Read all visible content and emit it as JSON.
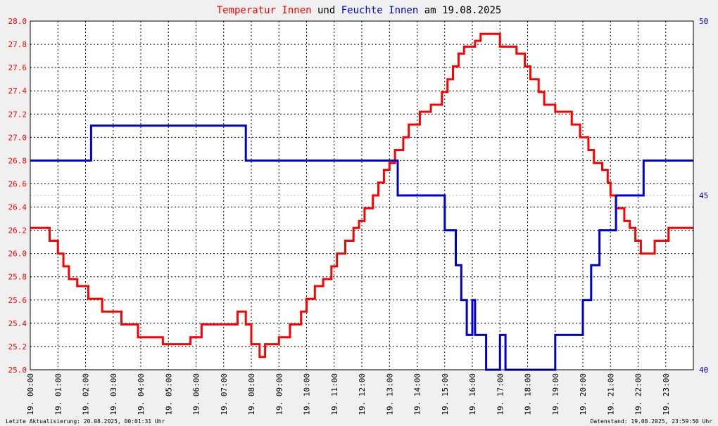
{
  "title": {
    "part1": "Temperatur Innen",
    "part2": "und",
    "part3": "Feuchte Innen",
    "part4": "am 19.08.2025",
    "color1": "#ff0000",
    "color2": "#000000",
    "color3": "#0000cc"
  },
  "footer": {
    "left": "Letzte Aktualisierung: 20.08.2025, 00:01:31 Uhr",
    "right": "Datenstand: 19.08.2025, 23:59:50 Uhr"
  },
  "chart_data": {
    "type": "line",
    "x_tick_labels": [
      "19. 00:00",
      "19. 01:00",
      "19. 02:00",
      "19. 03:00",
      "19. 04:00",
      "19. 05:00",
      "19. 06:00",
      "19. 07:00",
      "19. 08:00",
      "19. 09:00",
      "19. 10:00",
      "19. 11:00",
      "19. 12:00",
      "19. 13:00",
      "19. 14:00",
      "19. 15:00",
      "19. 16:00",
      "19. 17:00",
      "19. 18:00",
      "19. 19:00",
      "19. 20:00",
      "19. 21:00",
      "19. 22:00",
      "19. 23:00"
    ],
    "xlim_hours": [
      0,
      24
    ],
    "left_axis": {
      "ylim": [
        25.0,
        28.0
      ],
      "tick_labels": [
        "25.0",
        "25.2",
        "25.4",
        "25.6",
        "25.8",
        "26.0",
        "26.2",
        "26.4",
        "26.6",
        "26.8",
        "27.0",
        "27.2",
        "27.4",
        "27.6",
        "27.8",
        "28.0"
      ],
      "color": "#ff0000"
    },
    "right_axis": {
      "ylim": [
        40,
        50
      ],
      "tick_labels": [
        "40",
        "45",
        "50"
      ],
      "color": "#0000cc"
    },
    "grid": true,
    "series": [
      {
        "name": "Temperatur Innen",
        "axis": "left",
        "color": "#ff0000",
        "points": [
          [
            0,
            26.22
          ],
          [
            0.7,
            26.22
          ],
          [
            0.7,
            26.11
          ],
          [
            1.0,
            26.11
          ],
          [
            1.0,
            26.0
          ],
          [
            1.2,
            26.0
          ],
          [
            1.2,
            25.89
          ],
          [
            1.4,
            25.89
          ],
          [
            1.4,
            25.78
          ],
          [
            1.7,
            25.78
          ],
          [
            1.7,
            25.72
          ],
          [
            2.1,
            25.72
          ],
          [
            2.1,
            25.61
          ],
          [
            2.6,
            25.61
          ],
          [
            2.6,
            25.5
          ],
          [
            3.3,
            25.5
          ],
          [
            3.3,
            25.39
          ],
          [
            3.9,
            25.39
          ],
          [
            3.9,
            25.28
          ],
          [
            4.8,
            25.28
          ],
          [
            4.8,
            25.22
          ],
          [
            5.8,
            25.22
          ],
          [
            5.8,
            25.28
          ],
          [
            6.2,
            25.28
          ],
          [
            6.2,
            25.39
          ],
          [
            7.5,
            25.39
          ],
          [
            7.5,
            25.5
          ],
          [
            7.8,
            25.5
          ],
          [
            7.8,
            25.39
          ],
          [
            8.0,
            25.39
          ],
          [
            8.0,
            25.22
          ],
          [
            8.3,
            25.22
          ],
          [
            8.3,
            25.11
          ],
          [
            8.5,
            25.11
          ],
          [
            8.5,
            25.22
          ],
          [
            9.0,
            25.22
          ],
          [
            9.0,
            25.28
          ],
          [
            9.4,
            25.28
          ],
          [
            9.4,
            25.39
          ],
          [
            9.8,
            25.39
          ],
          [
            9.8,
            25.5
          ],
          [
            10.0,
            25.5
          ],
          [
            10.0,
            25.61
          ],
          [
            10.3,
            25.61
          ],
          [
            10.3,
            25.72
          ],
          [
            10.6,
            25.72
          ],
          [
            10.6,
            25.78
          ],
          [
            10.9,
            25.78
          ],
          [
            10.9,
            25.89
          ],
          [
            11.1,
            25.89
          ],
          [
            11.1,
            26.0
          ],
          [
            11.4,
            26.0
          ],
          [
            11.4,
            26.11
          ],
          [
            11.7,
            26.11
          ],
          [
            11.7,
            26.22
          ],
          [
            11.9,
            26.22
          ],
          [
            11.9,
            26.28
          ],
          [
            12.1,
            26.28
          ],
          [
            12.1,
            26.39
          ],
          [
            12.4,
            26.39
          ],
          [
            12.4,
            26.5
          ],
          [
            12.6,
            26.5
          ],
          [
            12.6,
            26.61
          ],
          [
            12.8,
            26.61
          ],
          [
            12.8,
            26.72
          ],
          [
            13.0,
            26.72
          ],
          [
            13.0,
            26.78
          ],
          [
            13.2,
            26.78
          ],
          [
            13.2,
            26.89
          ],
          [
            13.5,
            26.89
          ],
          [
            13.5,
            27.0
          ],
          [
            13.7,
            27.0
          ],
          [
            13.7,
            27.11
          ],
          [
            14.1,
            27.11
          ],
          [
            14.1,
            27.22
          ],
          [
            14.5,
            27.22
          ],
          [
            14.5,
            27.28
          ],
          [
            14.9,
            27.28
          ],
          [
            14.9,
            27.39
          ],
          [
            15.1,
            27.39
          ],
          [
            15.1,
            27.5
          ],
          [
            15.3,
            27.5
          ],
          [
            15.3,
            27.61
          ],
          [
            15.5,
            27.61
          ],
          [
            15.5,
            27.72
          ],
          [
            15.7,
            27.72
          ],
          [
            15.7,
            27.78
          ],
          [
            16.1,
            27.78
          ],
          [
            16.1,
            27.83
          ],
          [
            16.3,
            27.83
          ],
          [
            16.3,
            27.89
          ],
          [
            17.0,
            27.89
          ],
          [
            17.0,
            27.78
          ],
          [
            17.6,
            27.78
          ],
          [
            17.6,
            27.72
          ],
          [
            17.9,
            27.72
          ],
          [
            17.9,
            27.61
          ],
          [
            18.1,
            27.61
          ],
          [
            18.1,
            27.5
          ],
          [
            18.4,
            27.5
          ],
          [
            18.4,
            27.39
          ],
          [
            18.6,
            27.39
          ],
          [
            18.6,
            27.28
          ],
          [
            19.0,
            27.28
          ],
          [
            19.0,
            27.22
          ],
          [
            19.6,
            27.22
          ],
          [
            19.6,
            27.11
          ],
          [
            19.9,
            27.11
          ],
          [
            19.9,
            27.0
          ],
          [
            20.2,
            27.0
          ],
          [
            20.2,
            26.89
          ],
          [
            20.4,
            26.89
          ],
          [
            20.4,
            26.78
          ],
          [
            20.7,
            26.78
          ],
          [
            20.7,
            26.72
          ],
          [
            20.9,
            26.72
          ],
          [
            20.9,
            26.61
          ],
          [
            21.0,
            26.61
          ],
          [
            21.0,
            26.5
          ],
          [
            21.2,
            26.5
          ],
          [
            21.2,
            26.39
          ],
          [
            21.5,
            26.39
          ],
          [
            21.5,
            26.28
          ],
          [
            21.7,
            26.28
          ],
          [
            21.7,
            26.22
          ],
          [
            21.9,
            26.22
          ],
          [
            21.9,
            26.11
          ],
          [
            22.1,
            26.11
          ],
          [
            22.1,
            26.0
          ],
          [
            22.6,
            26.0
          ],
          [
            22.6,
            26.11
          ],
          [
            23.1,
            26.11
          ],
          [
            23.1,
            26.22
          ],
          [
            24.0,
            26.22
          ]
        ]
      },
      {
        "name": "Feuchte Innen",
        "axis": "right",
        "color": "#0000cc",
        "points": [
          [
            0,
            46.0
          ],
          [
            2.2,
            46.0
          ],
          [
            2.2,
            47.0
          ],
          [
            7.8,
            47.0
          ],
          [
            7.8,
            46.0
          ],
          [
            13.3,
            46.0
          ],
          [
            13.3,
            45.0
          ],
          [
            15.0,
            45.0
          ],
          [
            15.0,
            44.0
          ],
          [
            15.4,
            44.0
          ],
          [
            15.4,
            43.0
          ],
          [
            15.6,
            43.0
          ],
          [
            15.6,
            42.0
          ],
          [
            15.8,
            42.0
          ],
          [
            15.8,
            41.0
          ],
          [
            16.0,
            41.0
          ],
          [
            16.0,
            42.0
          ],
          [
            16.1,
            42.0
          ],
          [
            16.1,
            41.0
          ],
          [
            16.5,
            41.0
          ],
          [
            16.5,
            40.0
          ],
          [
            17.0,
            40.0
          ],
          [
            17.0,
            41.0
          ],
          [
            17.2,
            41.0
          ],
          [
            17.2,
            40.0
          ],
          [
            19.0,
            40.0
          ],
          [
            19.0,
            41.0
          ],
          [
            20.0,
            41.0
          ],
          [
            20.0,
            42.0
          ],
          [
            20.3,
            42.0
          ],
          [
            20.3,
            43.0
          ],
          [
            20.6,
            43.0
          ],
          [
            20.6,
            44.0
          ],
          [
            21.2,
            44.0
          ],
          [
            21.2,
            45.0
          ],
          [
            22.2,
            45.0
          ],
          [
            22.2,
            46.0
          ],
          [
            24.0,
            46.0
          ]
        ]
      }
    ]
  }
}
